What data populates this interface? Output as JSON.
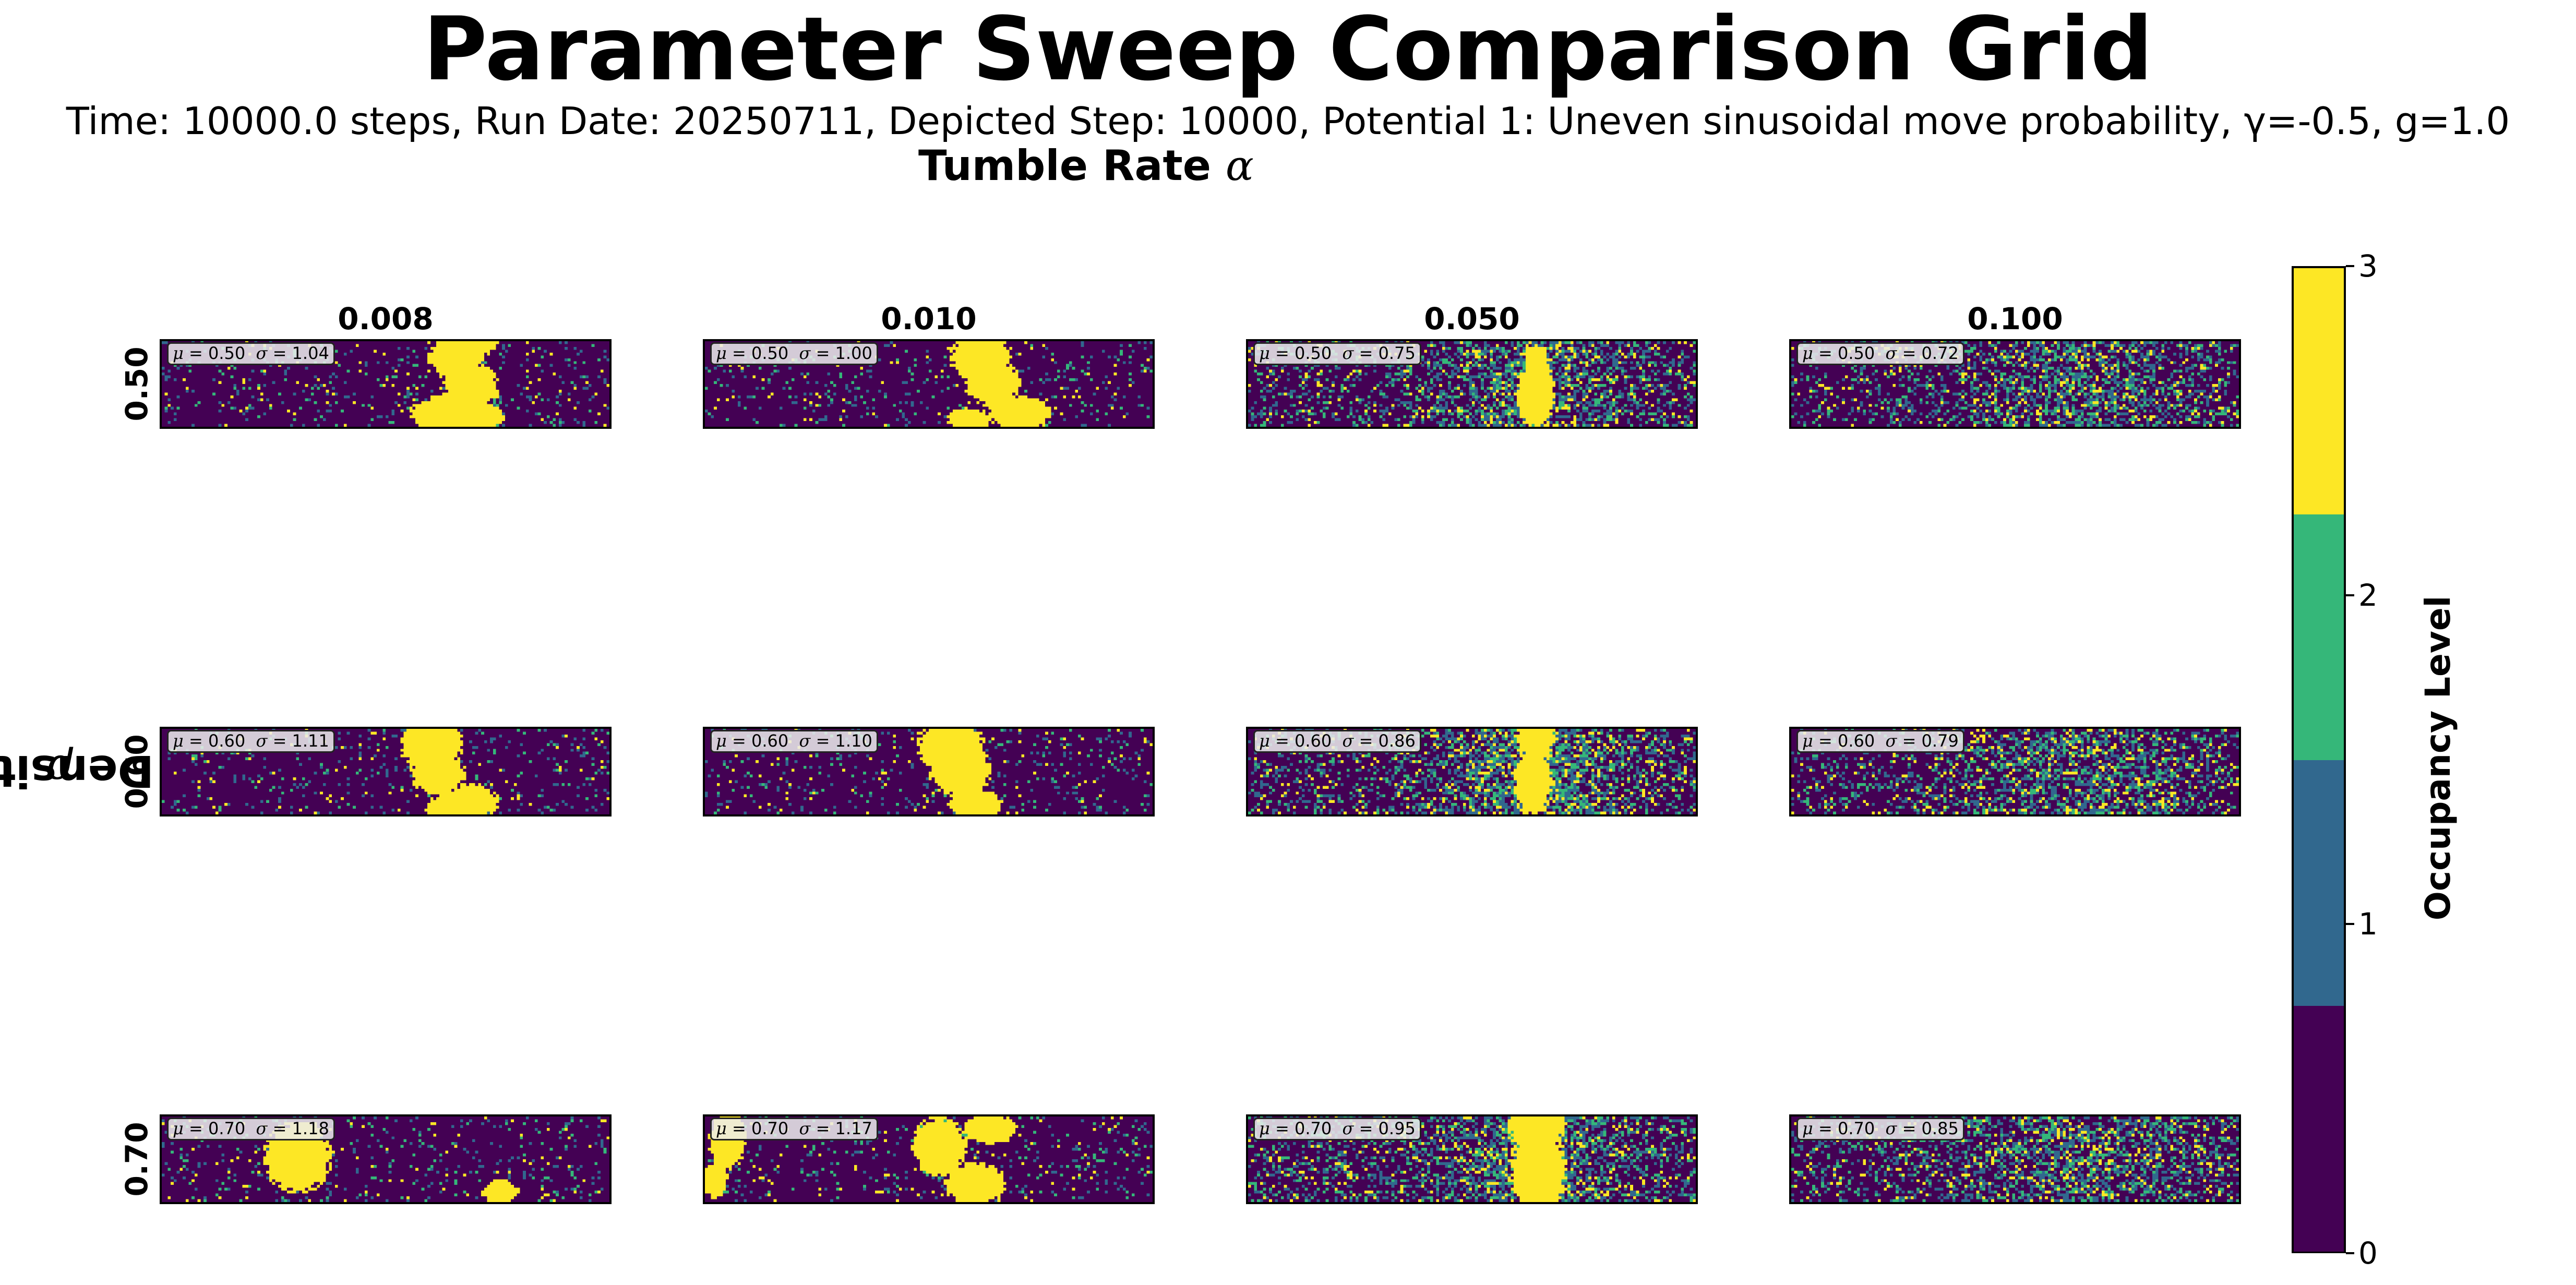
{
  "chart_data": {
    "type": "heatmap",
    "title": "Parameter Sweep Comparison Grid",
    "subtitle": "Time: 10000.0 steps, Run Date: 20250711, Depicted Step: 10000, Potential 1: Uneven sinusoidal move probability, γ=-0.5, g=1.0",
    "column_axis_label": "Tumble Rate",
    "column_axis_symbol": "α",
    "row_axis_label": "Density",
    "row_axis_symbol": "ρ",
    "columns": [
      "0.008",
      "0.010",
      "0.050",
      "0.100"
    ],
    "rows": [
      "0.50",
      "0.60",
      "0.70"
    ],
    "panel_stats": [
      [
        {
          "mu": "0.50",
          "sigma": "1.04"
        },
        {
          "mu": "0.50",
          "sigma": "1.00"
        },
        {
          "mu": "0.50",
          "sigma": "0.75"
        },
        {
          "mu": "0.50",
          "sigma": "0.72"
        }
      ],
      [
        {
          "mu": "0.60",
          "sigma": "1.11"
        },
        {
          "mu": "0.60",
          "sigma": "1.10"
        },
        {
          "mu": "0.60",
          "sigma": "0.86"
        },
        {
          "mu": "0.60",
          "sigma": "0.79"
        }
      ],
      [
        {
          "mu": "0.70",
          "sigma": "1.18"
        },
        {
          "mu": "0.70",
          "sigma": "1.17"
        },
        {
          "mu": "0.70",
          "sigma": "0.95"
        },
        {
          "mu": "0.70",
          "sigma": "0.85"
        }
      ]
    ],
    "colorbar": {
      "label": "Occupancy Level",
      "range": [
        0,
        3
      ],
      "ticks": [
        "0",
        "1",
        "2",
        "3"
      ],
      "levels": [
        0,
        1,
        2,
        3
      ],
      "colors": [
        "#440154",
        "#31688e",
        "#35b779",
        "#fde725"
      ]
    }
  }
}
